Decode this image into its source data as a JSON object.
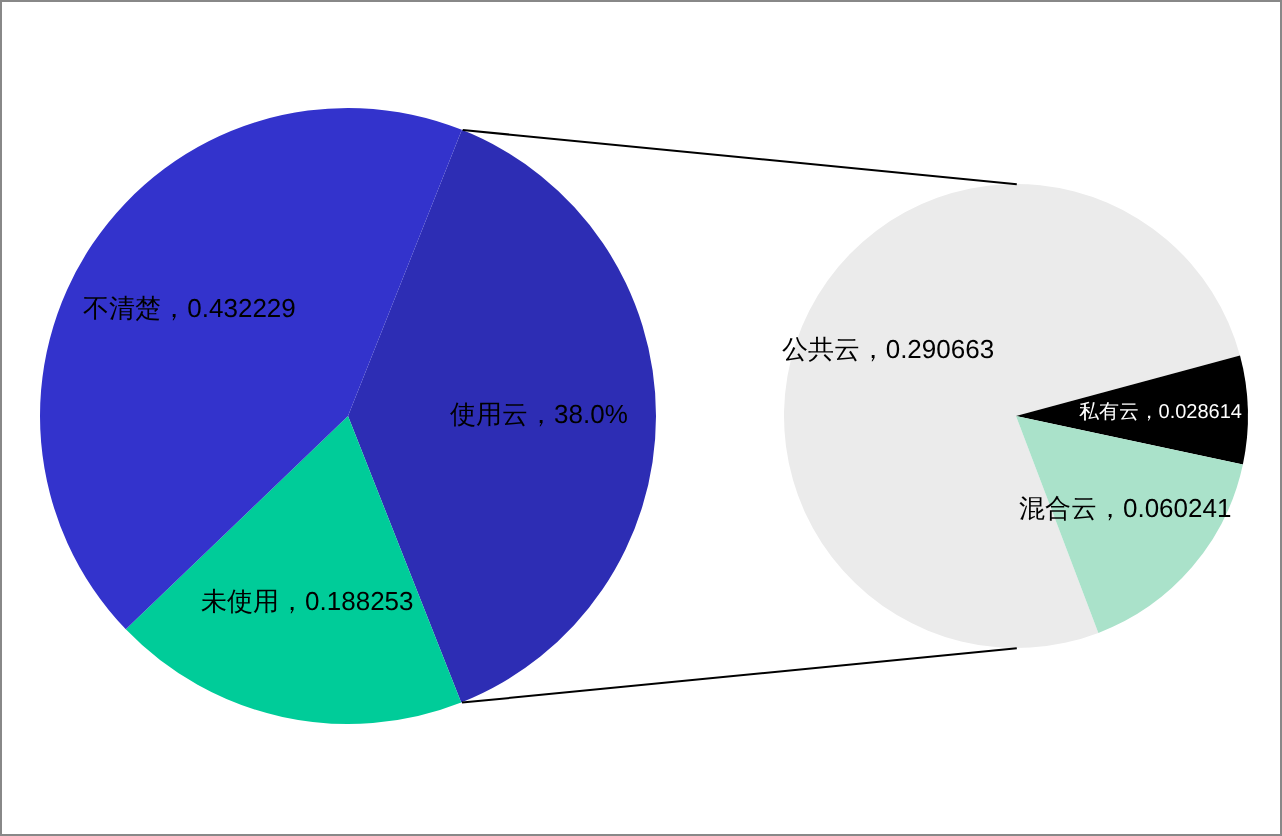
{
  "chart_data": [
    {
      "type": "pie",
      "categories": [
        "使用云",
        "未使用",
        "不清楚"
      ],
      "values": [
        0.38,
        0.188253,
        0.432229
      ],
      "colors": [
        "#2d2db4",
        "#00cc99",
        "#3333cc"
      ],
      "value_labels": [
        "38.0%",
        "0.188253",
        "0.432229"
      ]
    },
    {
      "type": "pie",
      "categories": [
        "公共云",
        "私有云",
        "混合云"
      ],
      "values": [
        0.290663,
        0.028614,
        0.060241
      ],
      "colors": [
        "#ebebeb",
        "#000000",
        "#aae2ca"
      ],
      "value_labels": [
        "0.290663",
        "0.028614",
        "0.060241"
      ]
    }
  ]
}
